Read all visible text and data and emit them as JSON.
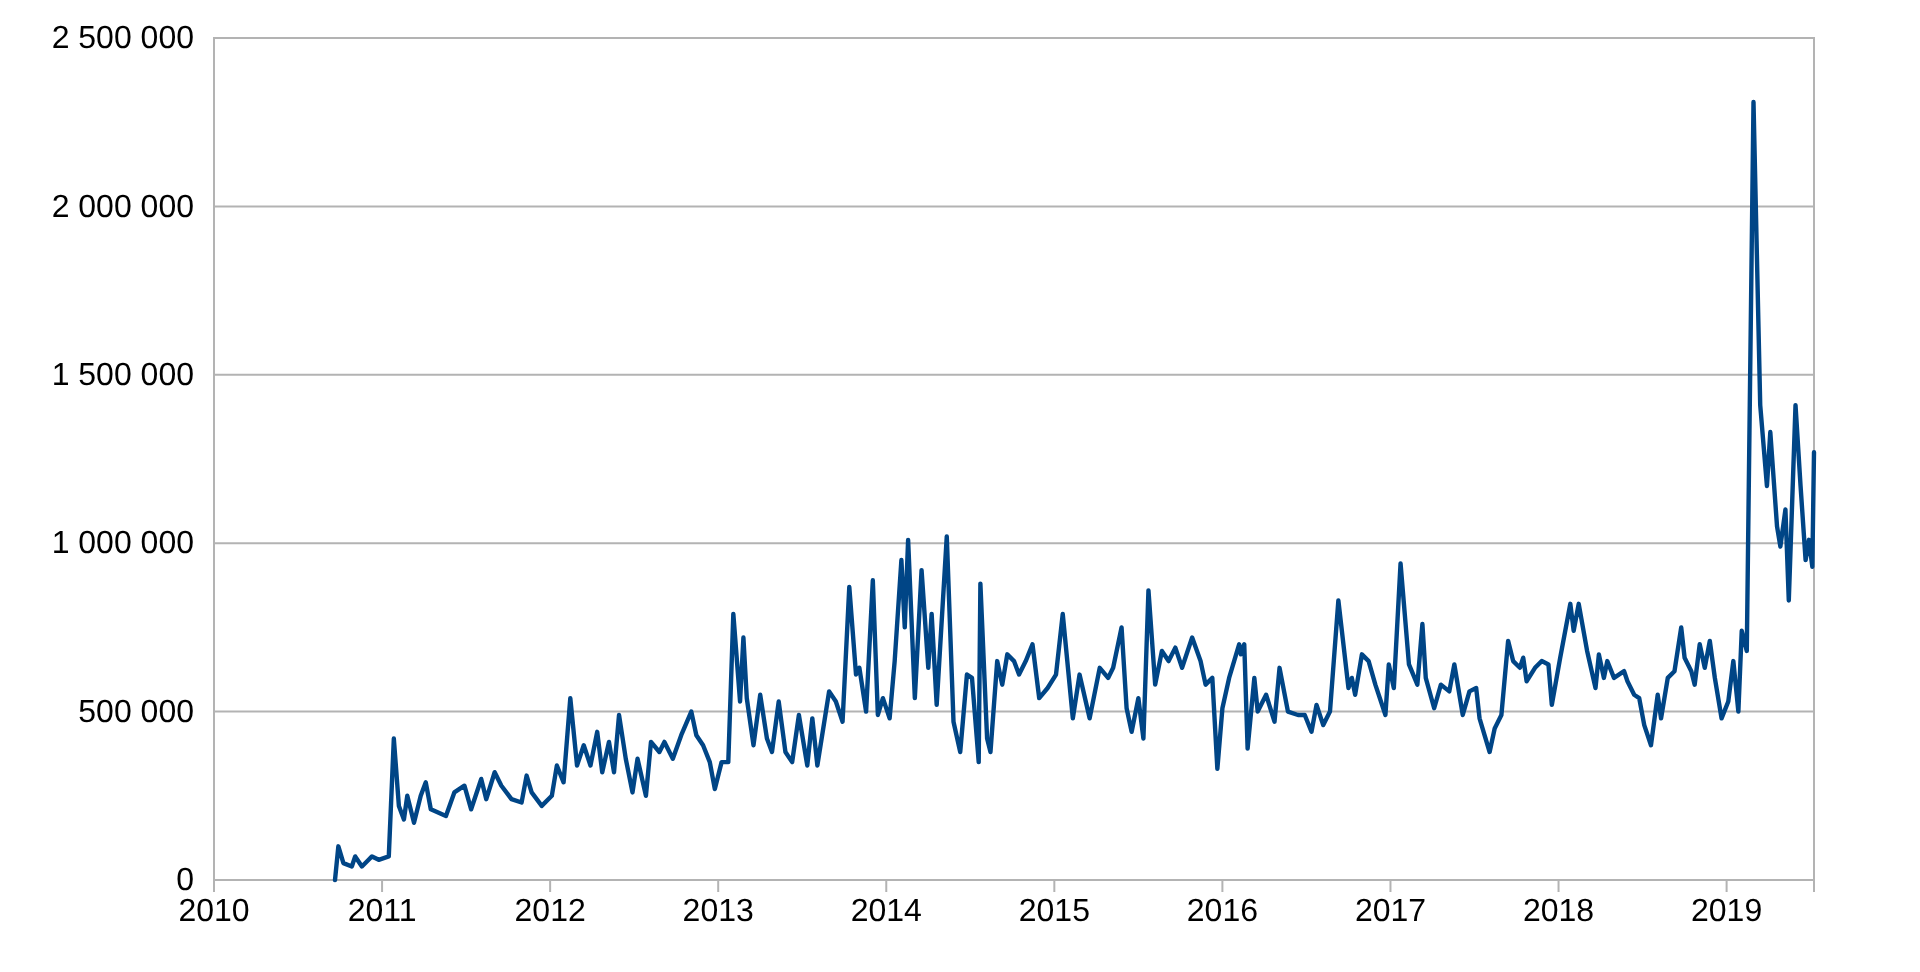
{
  "chart_data": {
    "type": "line",
    "color": "#004586",
    "grid": "y",
    "xlim": [
      2010,
      2019.52
    ],
    "xticks": [
      2010,
      2011,
      2012,
      2013,
      2014,
      2015,
      2016,
      2017,
      2018,
      2019
    ],
    "ylim": [
      0,
      2500000
    ],
    "yticks": [
      0,
      {
        "value": 500000,
        "label": "500 000"
      },
      {
        "value": 1000000,
        "label": "1 000 000"
      },
      {
        "value": 1500000,
        "label": "1 500 000"
      },
      {
        "value": 2000000,
        "label": "2 000 000"
      },
      {
        "value": 2500000,
        "label": "2 500 000"
      }
    ],
    "x": [
      2010.72,
      2010.74,
      2010.77,
      2010.82,
      2010.84,
      2010.88,
      2010.92,
      2010.94,
      2010.98,
      2011.04,
      2011.07,
      2011.1,
      2011.13,
      2011.15,
      2011.19,
      2011.23,
      2011.26,
      2011.29,
      2011.38,
      2011.43,
      2011.49,
      2011.53,
      2011.59,
      2011.62,
      2011.67,
      2011.71,
      2011.77,
      2011.83,
      2011.86,
      2011.89,
      2011.95,
      2012.01,
      2012.04,
      2012.08,
      2012.12,
      2012.16,
      2012.2,
      2012.24,
      2012.28,
      2012.31,
      2012.35,
      2012.38,
      2012.41,
      2012.45,
      2012.49,
      2012.52,
      2012.57,
      2012.6,
      2012.65,
      2012.68,
      2012.73,
      2012.78,
      2012.84,
      2012.87,
      2012.91,
      2012.95,
      2012.98,
      2013.02,
      2013.06,
      2013.09,
      2013.13,
      2013.15,
      2013.17,
      2013.21,
      2013.25,
      2013.29,
      2013.32,
      2013.36,
      2013.4,
      2013.44,
      2013.48,
      2013.53,
      2013.56,
      2013.59,
      2013.66,
      2013.7,
      2013.74,
      2013.78,
      2013.82,
      2013.84,
      2013.88,
      2013.92,
      2013.95,
      2013.98,
      2014.02,
      2014.05,
      2014.09,
      2014.11,
      2014.13,
      2014.17,
      2014.21,
      2014.25,
      2014.27,
      2014.3,
      2014.36,
      2014.4,
      2014.44,
      2014.48,
      2014.51,
      2014.55,
      2014.56,
      2014.6,
      2014.62,
      2014.66,
      2014.69,
      2014.72,
      2014.76,
      2014.79,
      2014.83,
      2014.87,
      2014.91,
      2014.96,
      2015.01,
      2015.05,
      2015.11,
      2015.15,
      2015.21,
      2015.27,
      2015.32,
      2015.35,
      2015.4,
      2015.43,
      2015.46,
      2015.5,
      2015.53,
      2015.56,
      2015.6,
      2015.64,
      2015.68,
      2015.72,
      2015.76,
      2015.82,
      2015.87,
      2015.9,
      2015.94,
      2015.97,
      2016.0,
      2016.04,
      2016.1,
      2016.11,
      2016.13,
      2016.15,
      2016.19,
      2016.21,
      2016.26,
      2016.31,
      2016.34,
      2016.39,
      2016.45,
      2016.49,
      2016.53,
      2016.56,
      2016.6,
      2016.64,
      2016.69,
      2016.75,
      2016.77,
      2016.79,
      2016.83,
      2016.87,
      2016.91,
      2016.97,
      2016.99,
      2017.02,
      2017.06,
      2017.11,
      2017.16,
      2017.19,
      2017.21,
      2017.26,
      2017.3,
      2017.35,
      2017.38,
      2017.43,
      2017.47,
      2017.51,
      2017.53,
      2017.59,
      2017.62,
      2017.66,
      2017.7,
      2017.73,
      2017.77,
      2017.79,
      2017.81,
      2017.86,
      2017.9,
      2017.94,
      2017.96,
      2018.01,
      2018.07,
      2018.09,
      2018.12,
      2018.17,
      2018.22,
      2018.24,
      2018.27,
      2018.29,
      2018.33,
      2018.39,
      2018.41,
      2018.45,
      2018.48,
      2018.51,
      2018.55,
      2018.59,
      2018.61,
      2018.65,
      2018.69,
      2018.73,
      2018.75,
      2018.79,
      2018.81,
      2018.84,
      2018.87,
      2018.9,
      2018.93,
      2018.97,
      2019.01,
      2019.04,
      2019.07,
      2019.09,
      2019.12,
      2019.16,
      2019.2,
      2019.24,
      2019.26,
      2019.3,
      2019.32,
      2019.35,
      2019.37,
      2019.41,
      2019.44,
      2019.47,
      2019.49,
      2019.51,
      2019.52
    ],
    "values": [
      0,
      100000,
      50000,
      40000,
      70000,
      40000,
      60000,
      70000,
      60000,
      70000,
      420000,
      220000,
      180000,
      250000,
      170000,
      250000,
      290000,
      210000,
      190000,
      260000,
      280000,
      210000,
      300000,
      240000,
      320000,
      280000,
      240000,
      230000,
      310000,
      260000,
      220000,
      250000,
      340000,
      290000,
      540000,
      340000,
      400000,
      340000,
      440000,
      320000,
      410000,
      320000,
      490000,
      360000,
      260000,
      360000,
      250000,
      410000,
      380000,
      410000,
      360000,
      430000,
      500000,
      430000,
      400000,
      350000,
      270000,
      350000,
      350000,
      790000,
      530000,
      720000,
      540000,
      400000,
      550000,
      420000,
      380000,
      530000,
      380000,
      350000,
      490000,
      340000,
      480000,
      340000,
      560000,
      530000,
      470000,
      870000,
      610000,
      630000,
      500000,
      890000,
      490000,
      540000,
      480000,
      650000,
      950000,
      750000,
      1010000,
      540000,
      920000,
      630000,
      790000,
      520000,
      1020000,
      470000,
      380000,
      610000,
      600000,
      350000,
      880000,
      420000,
      380000,
      650000,
      580000,
      670000,
      650000,
      610000,
      650000,
      700000,
      540000,
      570000,
      610000,
      790000,
      480000,
      610000,
      480000,
      630000,
      600000,
      630000,
      750000,
      510000,
      440000,
      540000,
      420000,
      860000,
      580000,
      680000,
      650000,
      690000,
      630000,
      720000,
      650000,
      580000,
      600000,
      330000,
      510000,
      600000,
      700000,
      670000,
      700000,
      390000,
      600000,
      500000,
      550000,
      470000,
      630000,
      500000,
      490000,
      490000,
      440000,
      520000,
      460000,
      500000,
      830000,
      570000,
      600000,
      550000,
      670000,
      650000,
      580000,
      490000,
      640000,
      570000,
      940000,
      640000,
      580000,
      760000,
      600000,
      510000,
      580000,
      560000,
      640000,
      490000,
      560000,
      570000,
      480000,
      380000,
      450000,
      490000,
      710000,
      650000,
      630000,
      660000,
      590000,
      630000,
      650000,
      640000,
      520000,
      660000,
      820000,
      740000,
      820000,
      680000,
      570000,
      670000,
      600000,
      650000,
      600000,
      620000,
      590000,
      550000,
      540000,
      460000,
      400000,
      550000,
      480000,
      600000,
      620000,
      750000,
      660000,
      620000,
      580000,
      700000,
      630000,
      710000,
      600000,
      480000,
      530000,
      650000,
      500000,
      740000,
      680000,
      2310000,
      1410000,
      1170000,
      1330000,
      1050000,
      990000,
      1100000,
      830000,
      1410000,
      1170000,
      950000,
      1010000,
      930000,
      1270000
    ]
  }
}
